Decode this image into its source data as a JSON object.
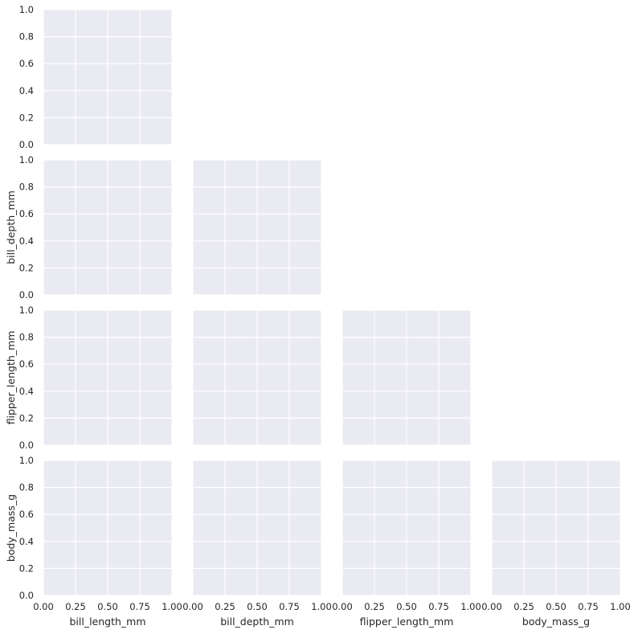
{
  "chart_data": {
    "type": "scatter",
    "layout": "pairgrid-lower-triangle",
    "variables": [
      "bill_length_mm",
      "bill_depth_mm",
      "flipper_length_mm",
      "body_mass_g"
    ],
    "xlabels": [
      "bill_length_mm",
      "bill_depth_mm",
      "flipper_length_mm",
      "body_mass_g"
    ],
    "ylabels": [
      "",
      "bill_depth_mm",
      "flipper_length_mm",
      "body_mass_g"
    ],
    "xlim": [
      0,
      1
    ],
    "ylim": [
      0,
      1
    ],
    "xticks": [
      "0.00",
      "0.25",
      "0.50",
      "0.75",
      "1.00"
    ],
    "yticks": [
      "0.0",
      "0.2",
      "0.4",
      "0.6",
      "0.8",
      "1.0"
    ],
    "grid": true,
    "series": [],
    "colors": {
      "panel_background": "#eaeaf2",
      "grid": "#ffffff",
      "text": "#262626"
    }
  }
}
